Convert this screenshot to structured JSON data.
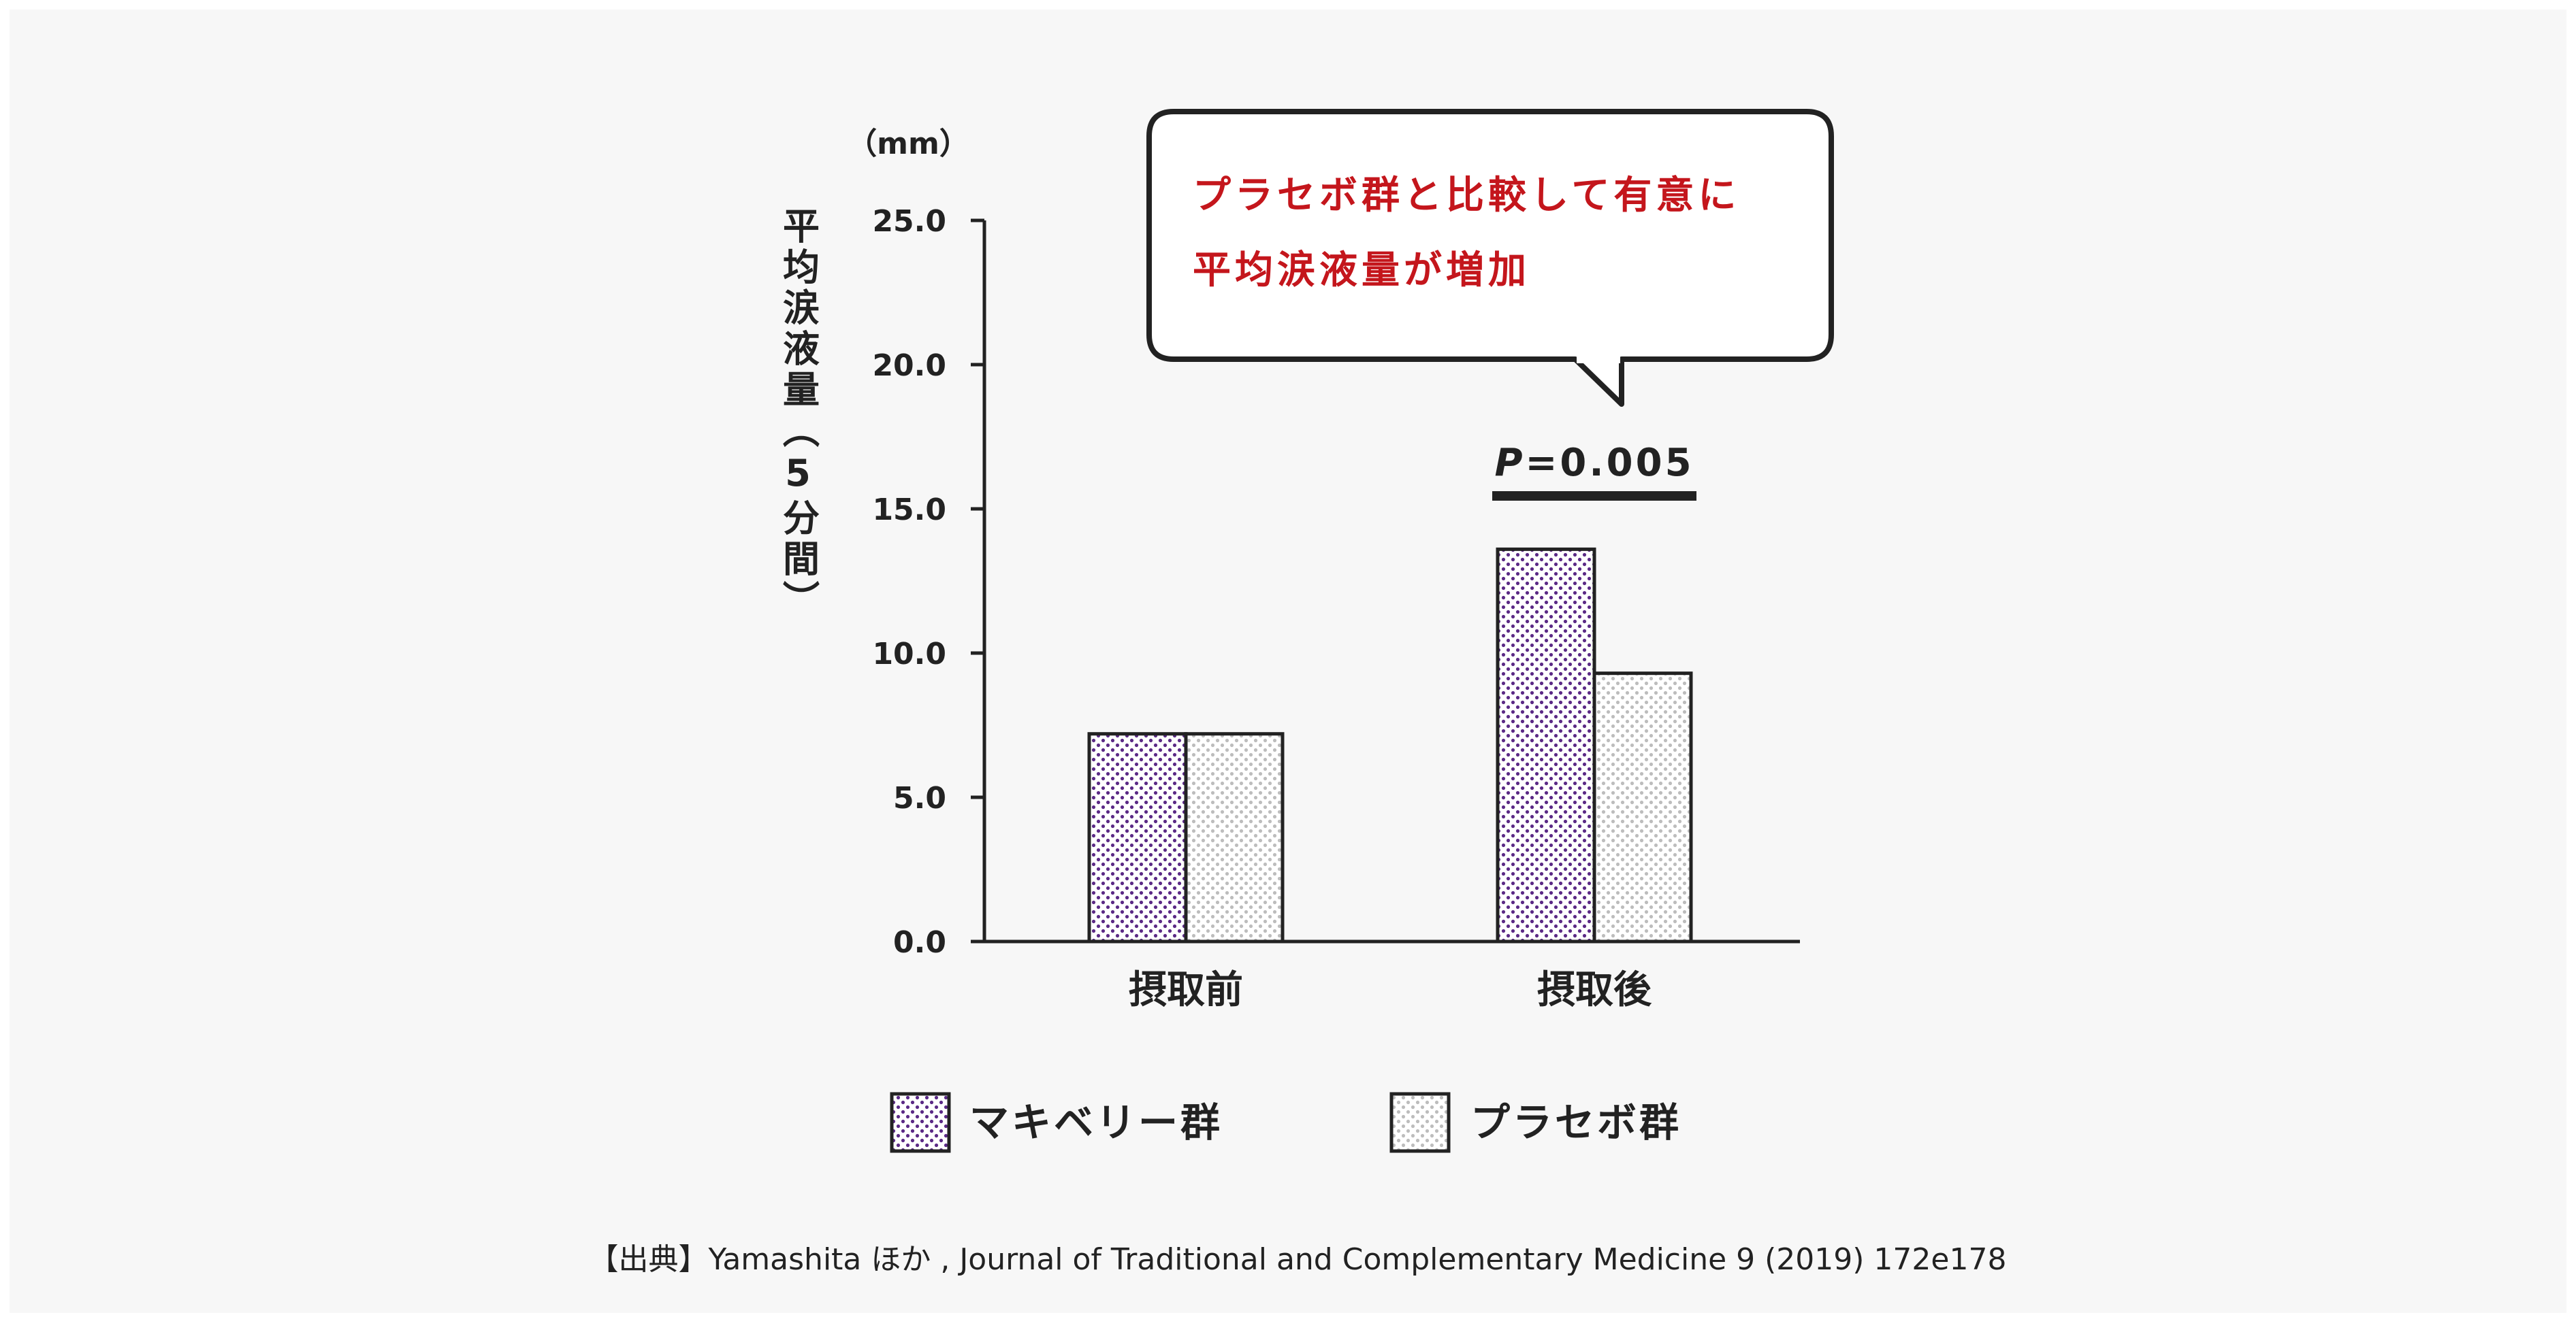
{
  "chart_data": {
    "type": "bar",
    "categories": [
      "摂取前",
      "摂取後"
    ],
    "series": [
      {
        "name": "マキベリー群",
        "values": [
          7.2,
          13.6
        ],
        "color": "#5b2a86",
        "pattern": "dense-dots"
      },
      {
        "name": "プラセボ群",
        "values": [
          7.2,
          9.3
        ],
        "color": "#bdbdbd",
        "pattern": "light-dots"
      }
    ],
    "ylabel": "平均涙液量（5分間）",
    "unit": "（mm）",
    "ylim": [
      0,
      25
    ],
    "yticks": [
      0,
      5,
      10,
      15,
      20,
      25
    ],
    "ytick_labels": [
      "0.0",
      "5.0",
      "10.0",
      "15.0",
      "20.0",
      "25.0"
    ],
    "significance": {
      "label": "P=0.005",
      "p_symbol": "P",
      "p_rest": "=0.005",
      "category": "摂取後"
    },
    "callout": {
      "line1": "プラセボ群と比較して有意に",
      "line2": "平均涙液量が増加",
      "color": "#c4161c"
    },
    "legend_position": "bottom",
    "grid": false
  },
  "source": "【出典】Yamashita ほか , Journal of Traditional and Complementary Medicine 9 (2019) 172e178"
}
